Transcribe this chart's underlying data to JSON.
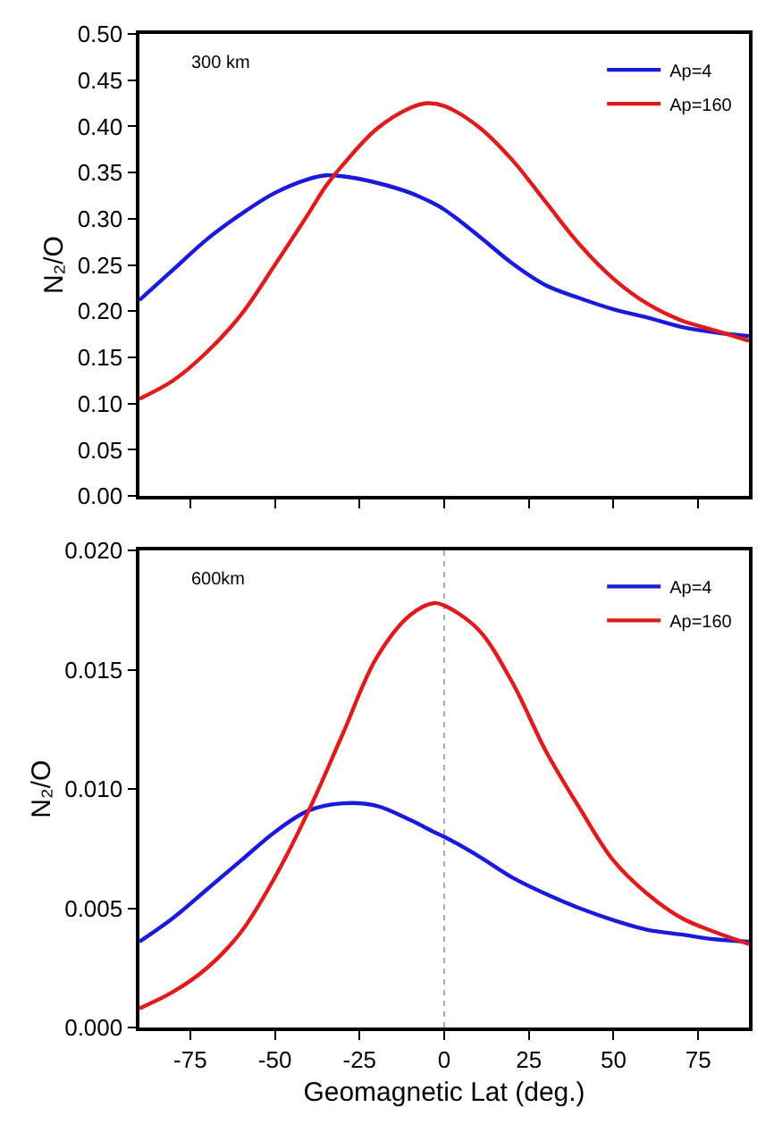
{
  "chart_data": [
    {
      "type": "line",
      "annotations": [
        "300 km"
      ],
      "ylabel": "N₂/O",
      "x": [
        -90,
        -80,
        -70,
        -60,
        -50,
        -40,
        -35,
        -30,
        -20,
        -10,
        -5,
        0,
        10,
        20,
        30,
        40,
        50,
        60,
        70,
        80,
        90
      ],
      "series": [
        {
          "name": "Ap=4",
          "color": "#1a1adc",
          "values": [
            0.212,
            0.245,
            0.278,
            0.305,
            0.328,
            0.343,
            0.347,
            0.346,
            0.339,
            0.328,
            0.32,
            0.31,
            0.282,
            0.252,
            0.228,
            0.214,
            0.202,
            0.193,
            0.183,
            0.177,
            0.173
          ]
        },
        {
          "name": "Ap=160",
          "color": "#e01b1b",
          "values": [
            0.105,
            0.125,
            0.156,
            0.196,
            0.25,
            0.306,
            0.335,
            0.358,
            0.397,
            0.42,
            0.425,
            0.422,
            0.4,
            0.364,
            0.318,
            0.272,
            0.235,
            0.208,
            0.19,
            0.179,
            0.168
          ]
        }
      ],
      "xlim": [
        -90,
        90
      ],
      "xticks": [
        -75,
        -50,
        -25,
        0,
        25,
        50,
        75
      ],
      "ylim": [
        0,
        0.5
      ],
      "yticks": [
        {
          "value": 0,
          "label": "0.00"
        },
        {
          "value": 0.05,
          "label": "0.05"
        },
        {
          "value": 0.1,
          "label": "0.10"
        },
        {
          "value": 0.15,
          "label": "0.15"
        },
        {
          "value": 0.2,
          "label": "0.20"
        },
        {
          "value": 0.25,
          "label": "0.25"
        },
        {
          "value": 0.3,
          "label": "0.30"
        },
        {
          "value": 0.35,
          "label": "0.35"
        },
        {
          "value": 0.4,
          "label": "0.40"
        },
        {
          "value": 0.45,
          "label": "0.45"
        },
        {
          "value": 0.5,
          "label": "0.50"
        }
      ],
      "tick_labels": "y",
      "legend": "top right",
      "grid": false,
      "line_style": "solid",
      "marker": "none"
    },
    {
      "type": "line",
      "annotations": [
        "600km"
      ],
      "xlabel": "Geomagnetic Lat (deg.)",
      "ylabel": "N₂/O",
      "x": [
        -90,
        -80,
        -70,
        -60,
        -50,
        -40,
        -30,
        -20,
        -10,
        -3,
        0,
        10,
        20,
        30,
        40,
        50,
        60,
        70,
        80,
        90
      ],
      "series": [
        {
          "name": "Ap=4",
          "color": "#1a1adc",
          "values": [
            0.0036,
            0.0046,
            0.0058,
            0.007,
            0.0082,
            0.0091,
            0.0094,
            0.0093,
            0.0087,
            0.0082,
            0.008,
            0.0072,
            0.0063,
            0.0056,
            0.005,
            0.0045,
            0.0041,
            0.0039,
            0.0037,
            0.0036
          ]
        },
        {
          "name": "Ap=160",
          "color": "#e01b1b",
          "values": [
            0.0008,
            0.0015,
            0.0025,
            0.004,
            0.0063,
            0.0091,
            0.0123,
            0.0155,
            0.0173,
            0.0178,
            0.0177,
            0.0167,
            0.0145,
            0.0116,
            0.0092,
            0.007,
            0.0056,
            0.0046,
            0.004,
            0.0035
          ]
        }
      ],
      "xlim": [
        -90,
        90
      ],
      "xticks": [
        -75,
        -50,
        -25,
        0,
        25,
        50,
        75
      ],
      "ylim": [
        0,
        0.02
      ],
      "yticks": [
        {
          "value": 0,
          "label": "0.000"
        },
        {
          "value": 0.005,
          "label": "0.005"
        },
        {
          "value": 0.01,
          "label": "0.010"
        },
        {
          "value": 0.015,
          "label": "0.015"
        },
        {
          "value": 0.02,
          "label": "0.020"
        }
      ],
      "legend": "top right",
      "grid": false,
      "line_style": "solid",
      "marker": "none",
      "ref_lines": [
        {
          "axis": "x",
          "value": 0,
          "color": "#aaaaaa",
          "line_style": "dotted"
        }
      ]
    }
  ]
}
